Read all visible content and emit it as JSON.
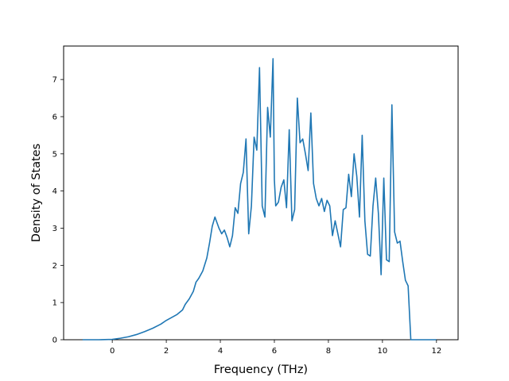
{
  "chart_data": {
    "type": "line",
    "title": "",
    "xlabel": "Frequency (THz)",
    "ylabel": "Density of States",
    "xlim": [
      -1.8,
      12.8
    ],
    "ylim": [
      0,
      7.9
    ],
    "xticks": [
      0,
      2,
      4,
      6,
      8,
      10,
      12
    ],
    "yticks": [
      0,
      1,
      2,
      3,
      4,
      5,
      6,
      7
    ],
    "grid": false,
    "series": [
      {
        "color": "#1f77b4",
        "x": [
          -1.1,
          -0.5,
          0,
          0.3,
          0.6,
          0.9,
          1.2,
          1.5,
          1.8,
          2.0,
          2.2,
          2.4,
          2.6,
          2.7,
          2.85,
          3.0,
          3.1,
          3.2,
          3.35,
          3.5,
          3.6,
          3.7,
          3.8,
          3.85,
          3.95,
          4.05,
          4.15,
          4.25,
          4.35,
          4.45,
          4.55,
          4.65,
          4.75,
          4.85,
          4.95,
          5.05,
          5.15,
          5.25,
          5.35,
          5.45,
          5.55,
          5.65,
          5.75,
          5.85,
          5.95,
          6.0,
          6.05,
          6.15,
          6.25,
          6.35,
          6.45,
          6.55,
          6.65,
          6.75,
          6.85,
          6.95,
          7.05,
          7.15,
          7.25,
          7.35,
          7.45,
          7.55,
          7.65,
          7.75,
          7.85,
          7.95,
          8.05,
          8.15,
          8.25,
          8.35,
          8.45,
          8.55,
          8.65,
          8.75,
          8.85,
          8.95,
          9.05,
          9.15,
          9.25,
          9.35,
          9.45,
          9.55,
          9.65,
          9.75,
          9.85,
          9.95,
          10.05,
          10.15,
          10.25,
          10.35,
          10.45,
          10.55,
          10.65,
          10.75,
          10.85,
          10.95,
          11.05,
          11.3,
          11.6,
          12.0
        ],
        "y": [
          0,
          0,
          0.01,
          0.04,
          0.08,
          0.14,
          0.22,
          0.31,
          0.42,
          0.52,
          0.6,
          0.68,
          0.8,
          0.95,
          1.1,
          1.3,
          1.55,
          1.65,
          1.85,
          2.2,
          2.6,
          3.05,
          3.3,
          3.2,
          3.0,
          2.85,
          2.95,
          2.75,
          2.5,
          2.8,
          3.55,
          3.4,
          4.2,
          4.5,
          5.4,
          2.85,
          3.6,
          5.45,
          5.1,
          7.32,
          3.6,
          3.3,
          6.25,
          5.45,
          7.56,
          4.3,
          3.6,
          3.7,
          4.1,
          4.3,
          3.55,
          5.65,
          3.2,
          3.5,
          6.5,
          5.3,
          5.4,
          5.0,
          4.55,
          6.1,
          4.2,
          3.8,
          3.6,
          3.8,
          3.45,
          3.75,
          3.6,
          2.8,
          3.2,
          2.85,
          2.5,
          3.5,
          3.55,
          4.45,
          3.85,
          5.0,
          4.4,
          3.3,
          5.5,
          3.2,
          2.3,
          2.25,
          3.6,
          4.35,
          3.4,
          1.75,
          4.35,
          2.15,
          2.1,
          6.32,
          2.9,
          2.6,
          2.65,
          2.1,
          1.6,
          1.45,
          0,
          0,
          0,
          0
        ]
      }
    ]
  }
}
